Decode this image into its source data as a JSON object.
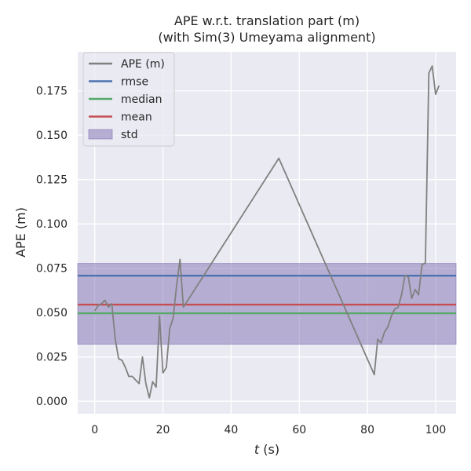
{
  "chart_data": {
    "type": "line",
    "title_line1": "APE w.r.t. translation part (m)",
    "title_line2": "(with Sim(3) Umeyama alignment)",
    "xlabel_var": "t",
    "xlabel_unit": " (s)",
    "ylabel": "APE (m)",
    "xlim": [
      -5,
      106
    ],
    "ylim": [
      -0.007,
      0.197
    ],
    "x_ticks": [
      0,
      20,
      40,
      60,
      80,
      100
    ],
    "y_ticks": [
      0.0,
      0.025,
      0.05,
      0.075,
      0.1,
      0.125,
      0.15,
      0.175
    ],
    "y_tick_labels": [
      "0.000",
      "0.025",
      "0.050",
      "0.075",
      "0.100",
      "0.125",
      "0.150",
      "0.175"
    ],
    "grid": true,
    "legend_position": "top-left",
    "legend": [
      {
        "label": "APE (m)",
        "kind": "line",
        "color": "#808080"
      },
      {
        "label": "rmse",
        "kind": "line",
        "color": "#4c72b0"
      },
      {
        "label": "median",
        "kind": "line",
        "color": "#55a868"
      },
      {
        "label": "mean",
        "kind": "line",
        "color": "#c44e52"
      },
      {
        "label": "std",
        "kind": "patch",
        "color": "#8172b2"
      }
    ],
    "series": [
      {
        "name": "APE (m)",
        "color": "#808080",
        "x": [
          0,
          1,
          2,
          3,
          4,
          5,
          6,
          7,
          8,
          9,
          10,
          11,
          12,
          13,
          14,
          15,
          16,
          17,
          18,
          19,
          20,
          21,
          22,
          23,
          24,
          25,
          26,
          54,
          82,
          83,
          84,
          85,
          86,
          87,
          88,
          89,
          90,
          91,
          92,
          93,
          94,
          95,
          96,
          97,
          98,
          99,
          100,
          101
        ],
        "y": [
          0.051,
          0.054,
          0.055,
          0.057,
          0.053,
          0.055,
          0.035,
          0.024,
          0.023,
          0.019,
          0.014,
          0.014,
          0.012,
          0.01,
          0.025,
          0.01,
          0.002,
          0.011,
          0.008,
          0.048,
          0.016,
          0.019,
          0.041,
          0.047,
          0.065,
          0.08,
          0.053,
          0.137,
          0.015,
          0.035,
          0.033,
          0.039,
          0.042,
          0.048,
          0.052,
          0.053,
          0.06,
          0.071,
          0.07,
          0.058,
          0.063,
          0.06,
          0.077,
          0.078,
          0.185,
          0.189,
          0.173,
          0.178
        ]
      }
    ],
    "rmse": 0.0708,
    "median": 0.0496,
    "mean": 0.0545,
    "std_band": [
      0.0322,
      0.0777
    ]
  }
}
